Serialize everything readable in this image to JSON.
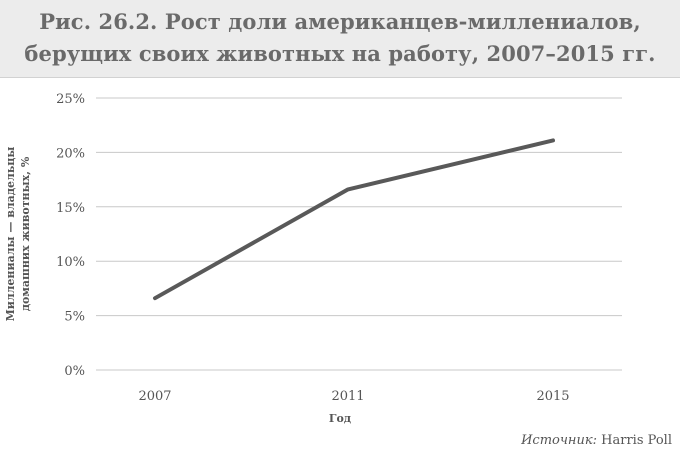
{
  "title": {
    "line1": "Рис. 26.2. Рост доли американцев-миллениалов,",
    "line2": "берущих своих животных на работу, 2007–2015 гг."
  },
  "chart_data": {
    "type": "line",
    "x": [
      "2007",
      "2011",
      "2015"
    ],
    "series": [
      {
        "values": [
          6.6,
          16.6,
          21.1
        ]
      }
    ],
    "xlabel": "Год",
    "ylabel": [
      "Миллениалы — владельцы",
      "домашних животных, %"
    ],
    "ylim": [
      0,
      25
    ],
    "yticks": [
      0,
      5,
      10,
      15,
      20,
      25
    ],
    "ytick_labels": [
      "0%",
      "5%",
      "10%",
      "15%",
      "20%",
      "25%"
    ],
    "grid": true,
    "line_color": "#595959",
    "grid_color": "#c8c8c8"
  },
  "source": {
    "label": "Источник:",
    "text": "Harris Poll"
  }
}
